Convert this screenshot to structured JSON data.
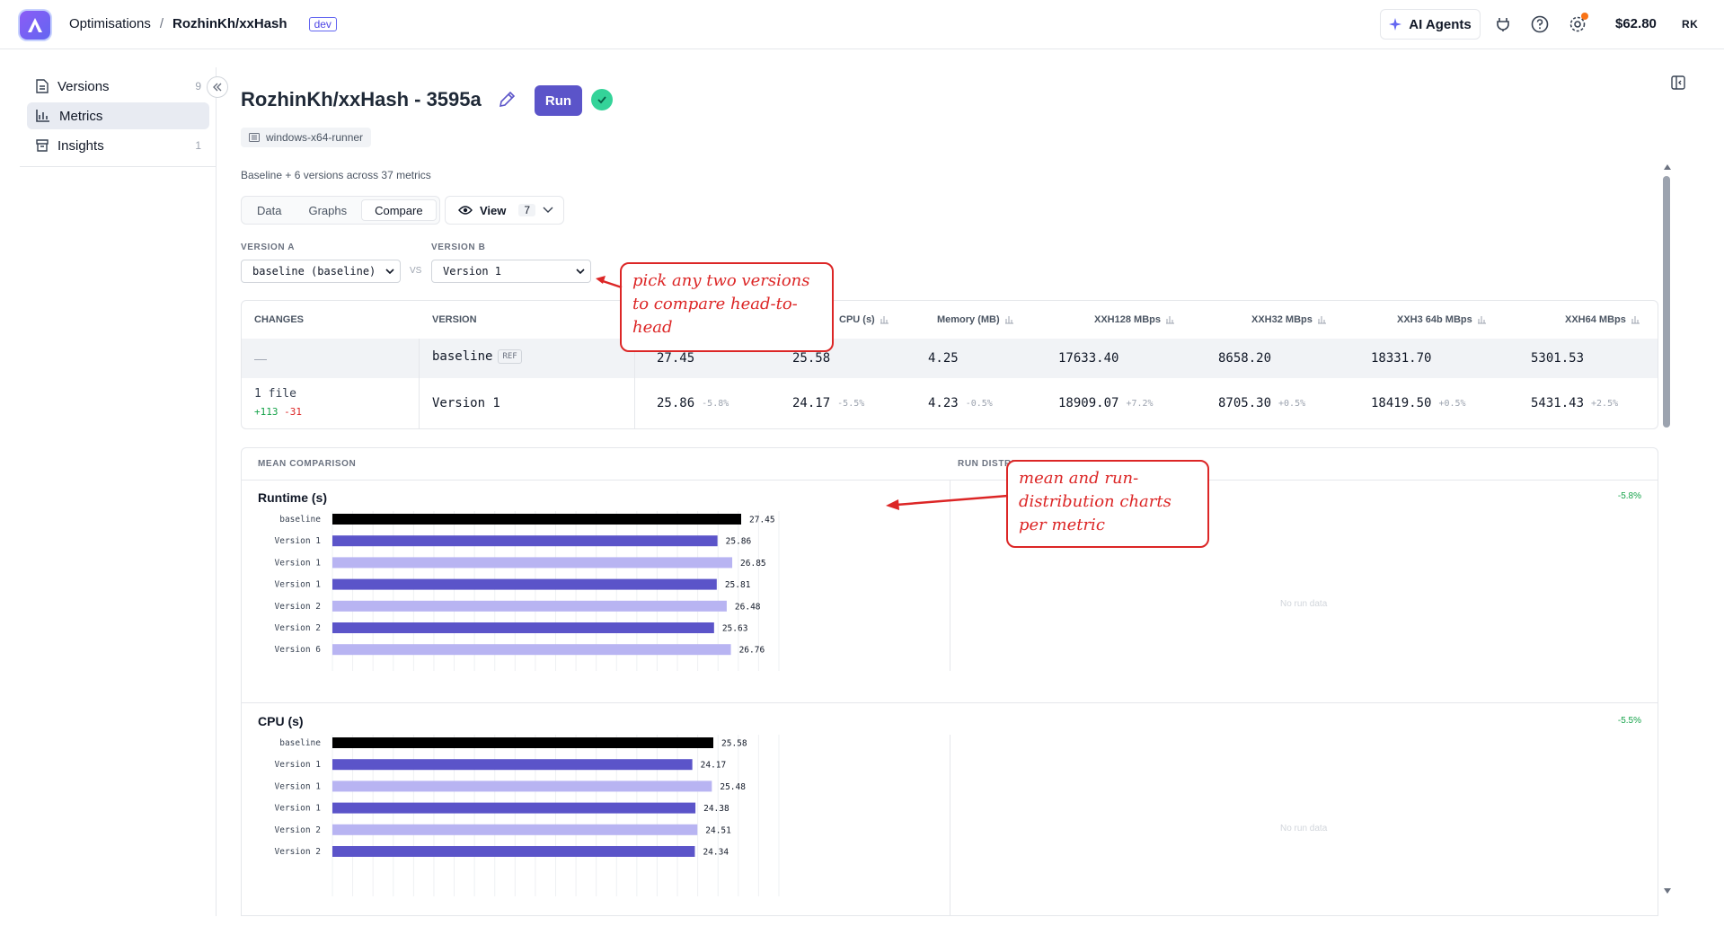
{
  "topbar": {
    "breadcrumb_parent": "Optimisations",
    "breadcrumb_sep": "/",
    "breadcrumb_current": "RozhinKh/xxHash",
    "env_tag": "dev",
    "ai_agents_label": "AI Agents",
    "credit": "$62.80",
    "avatar_initials": "RK"
  },
  "sidebar": {
    "items": [
      {
        "label": "Versions",
        "count": "9",
        "icon": "file-icon"
      },
      {
        "label": "Metrics",
        "count": "",
        "icon": "bar-chart-icon"
      },
      {
        "label": "Insights",
        "count": "1",
        "icon": "box-icon"
      }
    ]
  },
  "header": {
    "title": "RozhinKh/xxHash - 3595a",
    "run_label": "Run",
    "runner": "windows-x64-runner",
    "summary": "Baseline + 6 versions across 37 metrics"
  },
  "tabs": [
    {
      "label": "Data"
    },
    {
      "label": "Graphs"
    },
    {
      "label": "Compare"
    }
  ],
  "view": {
    "label": "View",
    "count": "7"
  },
  "compare": {
    "version_a_label": "VERSION A",
    "version_a_value": "baseline (baseline)",
    "vs": "VS",
    "version_b_label": "VERSION B",
    "version_b_value": "Version 1"
  },
  "table": {
    "headers": {
      "changes": "CHANGES",
      "version": "VERSION",
      "cpu": "CPU (s)",
      "memory": "Memory (MB)",
      "xxh128": "XXH128 MBps",
      "xxh32": "XXH32 MBps",
      "xxh3": "XXH3 64b MBps",
      "xxh64": "XXH64 MBps"
    },
    "baseline": {
      "changes": "—",
      "version": "baseline",
      "ref": "REF",
      "values": [
        "27.45",
        "25.58",
        "4.25",
        "17633.40",
        "8658.20",
        "18331.70",
        "5301.53"
      ]
    },
    "version1": {
      "changes": "1 file",
      "added": "+113",
      "removed": "-31",
      "version": "Version 1",
      "values": [
        "25.86",
        "24.17",
        "4.23",
        "18909.07",
        "8705.30",
        "18419.50",
        "5431.43"
      ],
      "deltas": [
        "-5.8%",
        "-5.5%",
        "-0.5%",
        "+7.2%",
        "+0.5%",
        "+0.5%",
        "+2.5%"
      ]
    }
  },
  "charts_panel": {
    "mean_label": "MEAN COMPARISON",
    "dist_label": "RUN DISTRIBUTION",
    "no_run_data": "No run data"
  },
  "chart_data": [
    {
      "type": "bar",
      "title": "Runtime (s)",
      "delta": "-5.8%",
      "categories": [
        "baseline",
        "Version 1",
        "Version 1",
        "Version 1",
        "Version 2",
        "Version 2",
        "Version 6"
      ],
      "values": [
        27.45,
        25.86,
        26.85,
        25.81,
        26.48,
        25.63,
        26.76
      ],
      "value_labels": [
        "27.45",
        "25.86",
        "26.85",
        "25.81",
        "26.48",
        "25.63",
        "26.76"
      ],
      "colors": [
        "#000000",
        "#5b54c9",
        "#b8b4f2",
        "#5b54c9",
        "#b8b4f2",
        "#5b54c9",
        "#b8b4f2"
      ]
    },
    {
      "type": "bar",
      "title": "CPU (s)",
      "delta": "-5.5%",
      "categories": [
        "baseline",
        "Version 1",
        "Version 1",
        "Version 1",
        "Version 2",
        "Version 2"
      ],
      "values": [
        25.58,
        24.17,
        25.48,
        24.38,
        24.51,
        24.34
      ],
      "value_labels": [
        "25.58",
        "24.17",
        "25.48",
        "24.38",
        "24.51",
        "24.34"
      ],
      "colors": [
        "#000000",
        "#5b54c9",
        "#b8b4f2",
        "#5b54c9",
        "#b8b4f2",
        "#5b54c9"
      ]
    }
  ],
  "annotations": {
    "compare_note": "pick any two versions to compare head-to-head",
    "charts_note": "mean and run-distribution charts per metric"
  },
  "colors": {
    "accent": "#5b54c9",
    "bar_light": "#b8b4f2",
    "callout": "#dc2626"
  }
}
